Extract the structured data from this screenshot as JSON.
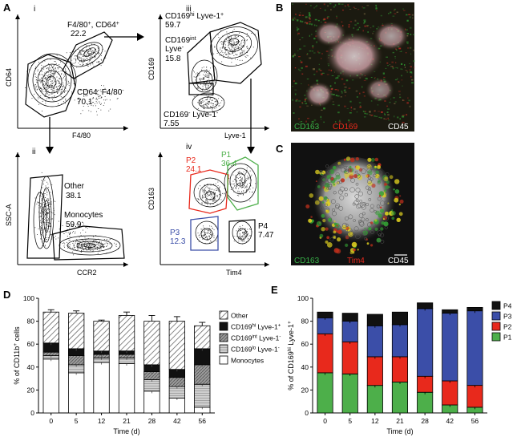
{
  "panel_letters": {
    "A": "A",
    "B": "B",
    "C": "C",
    "D": "D",
    "E": "E"
  },
  "subpanels": {
    "i": "i",
    "ii": "ii",
    "iii": "iii",
    "iv": "iv"
  },
  "flow": {
    "i": {
      "xlabel": "F4/80",
      "ylabel": "CD64",
      "gate_hi_line1": "F4/80",
      "gate_hi_line1_sup": "+",
      "gate_hi_line1b": ", CD64",
      "gate_hi_line1b_sup": "+",
      "gate_hi_value": "22.2",
      "gate_lo_line1": "CD64",
      "gate_lo_line1_sup": "-",
      "gate_lo_line1b": " F4/80",
      "gate_lo_line1b_sup": "-",
      "gate_lo_value": "70.1"
    },
    "ii": {
      "xlabel": "CCR2",
      "ylabel": "SSC-A",
      "other_label": "Other",
      "other_value": "38.1",
      "mono_label": "Monocytes",
      "mono_value": "59.9"
    },
    "iii": {
      "xlabel": "Lyve-1",
      "ylabel": "CD169",
      "hi_label": "CD169",
      "hi_sup": "hi",
      "hi_label2": " Lyve-1",
      "hi_sup2": "+",
      "hi_value": "59.7",
      "int_label": "CD169",
      "int_sup": "int",
      "int_label2": "Lyve",
      "int_sup2": "-",
      "int_value": "15.8",
      "lo_label": "CD169",
      "lo_sup": "-",
      "lo_label2": " Lyve-1",
      "lo_sup2": "-",
      "lo_value": "7.55"
    },
    "iv": {
      "xlabel": "Tim4",
      "ylabel": "CD163",
      "p1_label": "P1",
      "p1_value": "36.4",
      "p2_label": "P2",
      "p2_value": "24.1",
      "p3_label": "P3",
      "p3_value": "12.3",
      "p4_label": "P4",
      "p4_value": "7.47"
    }
  },
  "micro_b": {
    "m1": "CD163",
    "m2": "CD169",
    "m3": "CD45"
  },
  "micro_c": {
    "m1": "CD163",
    "m2": "Tim4",
    "m3": "CD45"
  },
  "colors": {
    "p1": "#4daf4a",
    "p2": "#e8291c",
    "p3": "#3b4ea8",
    "p4": "#111111",
    "green": "#39b54a",
    "red": "#e8291c"
  },
  "chart_data": [
    {
      "type": "bar",
      "title": "",
      "xlabel": "Time (d)",
      "ylabel": "% of CD11b",
      "ylabel_sup": "+",
      "ylabel_tail": " cells",
      "categories": [
        "0",
        "5",
        "12",
        "21",
        "28",
        "42",
        "56"
      ],
      "yticks": [
        "0",
        "20",
        "40",
        "60",
        "80",
        "100"
      ],
      "ylim": [
        0,
        100
      ],
      "stacked": true,
      "series": [
        {
          "name": "Monocytes",
          "values": [
            47,
            35,
            44,
            43,
            19,
            13,
            5
          ]
        },
        {
          "name": "CD169lo Lyve-1-",
          "values": [
            3,
            7,
            4,
            5,
            10,
            10,
            20
          ]
        },
        {
          "name": "CD169int Lyve-1-",
          "values": [
            3,
            8,
            3,
            3,
            7,
            8,
            17
          ]
        },
        {
          "name": "CD169hi Lyve-1+",
          "values": [
            8,
            6,
            3,
            3,
            6,
            7,
            14
          ]
        },
        {
          "name": "Other",
          "values": [
            27,
            31,
            26,
            31,
            38,
            42,
            20
          ]
        }
      ],
      "errors": [
        2,
        2,
        1,
        3,
        5,
        4,
        3
      ],
      "legend": [
        {
          "text": "Other",
          "sup": "",
          "tail": ""
        },
        {
          "text": "CD169",
          "sup": "hi",
          "tail": " Lyve-1",
          "sup2": "+"
        },
        {
          "text": "CD169",
          "sup": "int",
          "tail": " Lyve-1",
          "sup2": "-"
        },
        {
          "text": "CD169",
          "sup": "lo",
          "tail": " Lyve-1",
          "sup2": "-"
        },
        {
          "text": "Monocytes",
          "sup": "",
          "tail": ""
        }
      ]
    },
    {
      "type": "bar",
      "title": "",
      "xlabel": "Time (d)",
      "ylabel": "% of CD169",
      "ylabel_sup": "hi",
      "ylabel_tail": " Lyve-1",
      "ylabel_sup2": "+",
      "categories": [
        "0",
        "5",
        "12",
        "21",
        "28",
        "42",
        "56"
      ],
      "yticks": [
        "0",
        "20",
        "40",
        "60",
        "80",
        "100"
      ],
      "ylim": [
        0,
        100
      ],
      "stacked": true,
      "series": [
        {
          "name": "P1",
          "values": [
            35,
            34,
            24,
            27,
            18,
            7,
            5
          ]
        },
        {
          "name": "P2",
          "values": [
            34,
            28,
            25,
            22,
            14,
            21,
            19
          ]
        },
        {
          "name": "P3",
          "values": [
            14,
            18,
            27,
            28,
            59,
            59,
            65
          ]
        },
        {
          "name": "P4",
          "values": [
            5,
            7,
            10,
            11,
            5,
            3,
            3
          ]
        }
      ],
      "legend": [
        "P4",
        "P3",
        "P2",
        "P1"
      ]
    }
  ]
}
